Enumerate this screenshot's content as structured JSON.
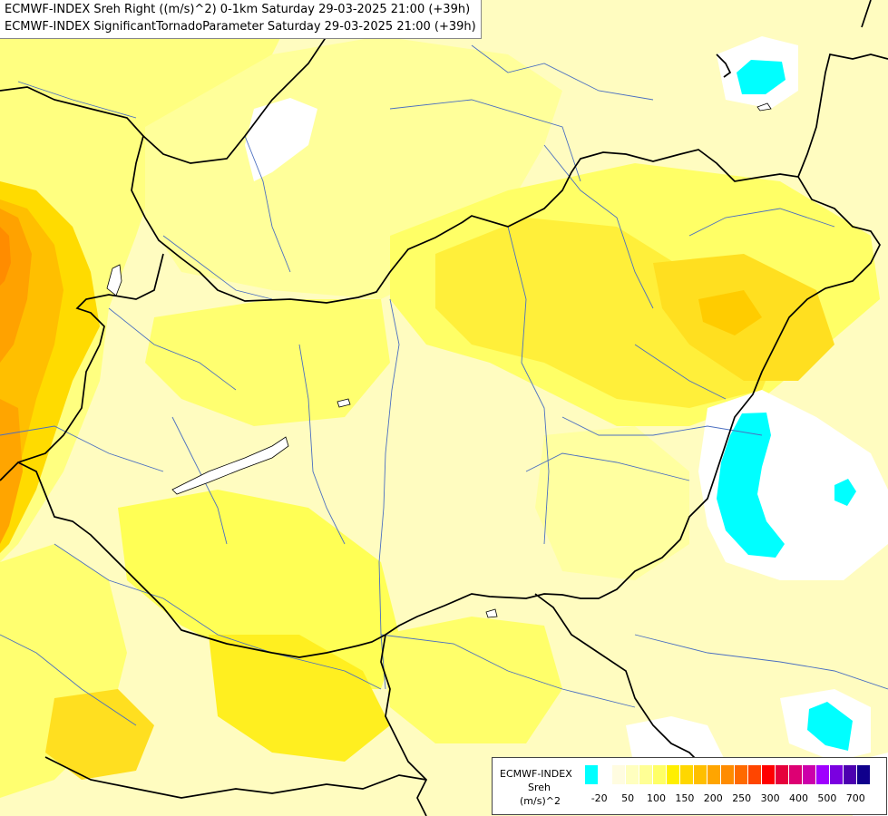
{
  "title": {
    "line1": "ECMWF-INDEX Sreh Right ((m/s)^2) 0-1km Saturday 29-03-2025 21:00 (+39h)",
    "line2": "ECMWF-INDEX SignificantTornadoParameter Saturday 29-03-2025 21:00 (+39h)"
  },
  "legend": {
    "source": "ECMWF-INDEX",
    "parameter": "Sreh",
    "unit": "(m/s)^2",
    "colors": [
      "#00ffff",
      "#ffffff",
      "#fffce0",
      "#ffffbf",
      "#ffff95",
      "#ffff66",
      "#ffef00",
      "#ffd700",
      "#ffbf00",
      "#ffa500",
      "#ff8c00",
      "#ff6a00",
      "#ff4500",
      "#ff0000",
      "#e6003c",
      "#dd0073",
      "#cc00aa",
      "#a000ff",
      "#7a00e0",
      "#4c00b0",
      "#10008c"
    ],
    "ticks": [
      {
        "label": "-20",
        "i": 1
      },
      {
        "label": "50",
        "i": 3
      },
      {
        "label": "100",
        "i": 5
      },
      {
        "label": "150",
        "i": 7
      },
      {
        "label": "200",
        "i": 9
      },
      {
        "label": "250",
        "i": 11
      },
      {
        "label": "300",
        "i": 13
      },
      {
        "label": "400",
        "i": 15
      },
      {
        "label": "500",
        "i": 17
      },
      {
        "label": "700",
        "i": 19
      }
    ]
  }
}
